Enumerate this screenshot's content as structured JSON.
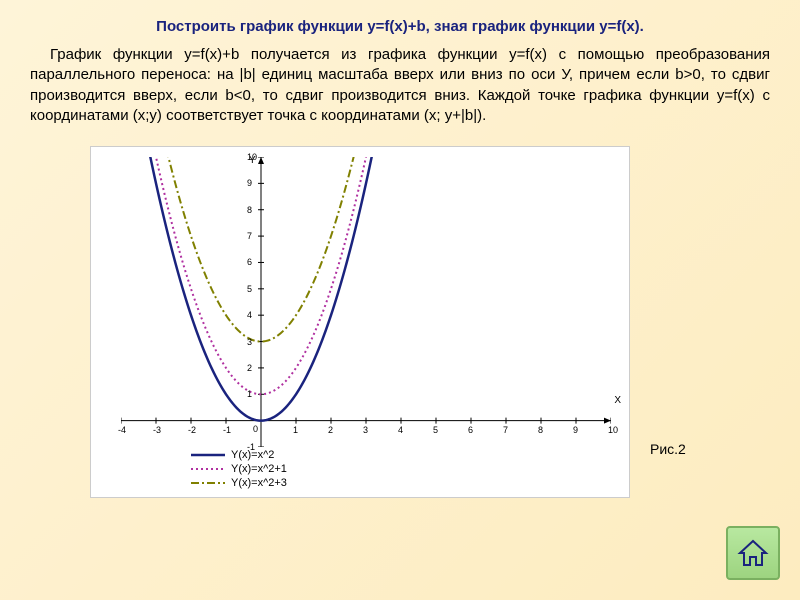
{
  "title": "Построить график функции y=f(x)+b, зная график функции y=f(x).",
  "body": "График функции y=f(x)+b получается из графика функции y=f(x) с помощью преобразования параллельного переноса: на |b| единиц масштаба вверх или вниз по оси У, причем если b>0, то сдвиг производится вверх, если b<0, то сдвиг производится вниз. Каждой точке графика функции y=f(x) с координатами (x;y) соответствует точка с координатами (x; y+|b|).",
  "figLabel": "Рис.2",
  "chart": {
    "type": "line",
    "background_color": "#ffffff",
    "grid_color": "#e0e0e0",
    "axis_color": "#000000",
    "xlim": [
      -4,
      10
    ],
    "ylim": [
      -1,
      10
    ],
    "xtick_step": 1,
    "ytick_step": 1,
    "x_axis_label": "X",
    "y_axis_label": "Y",
    "series": [
      {
        "name": "Y(x)=x^2",
        "color": "#1a237e",
        "style": "solid",
        "width": 2.5,
        "offset": 0
      },
      {
        "name": "Y(x)=x^2+1",
        "color": "#b030a0",
        "style": "dotted",
        "width": 2,
        "offset": 1
      },
      {
        "name": "Y(x)=x^2+3",
        "color": "#808000",
        "style": "dashdot",
        "width": 2,
        "offset": 3
      }
    ]
  },
  "homeButton": {
    "bg": "#a8e090",
    "border": "#7ab060",
    "icon_color": "#1a237e"
  }
}
